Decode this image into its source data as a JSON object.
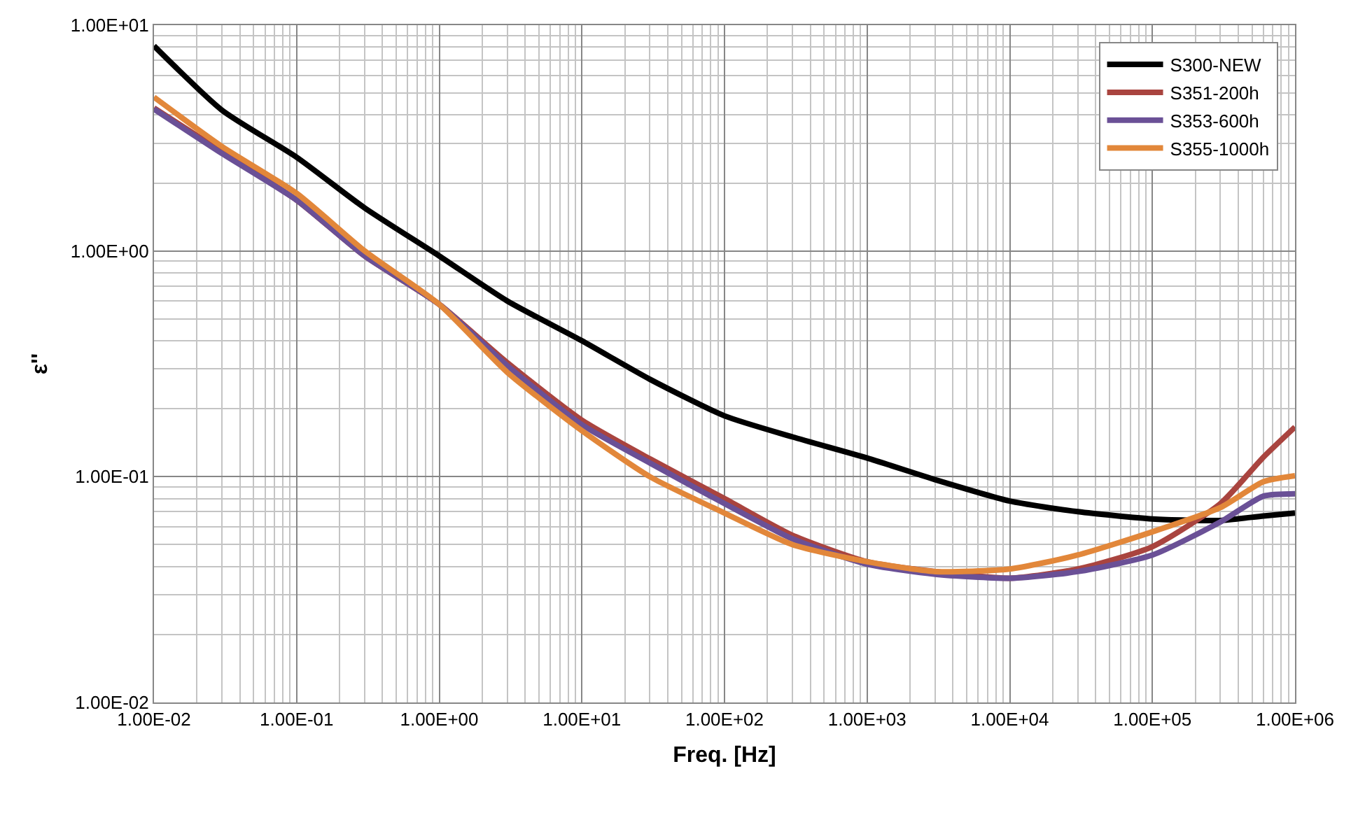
{
  "chart_data": {
    "type": "line",
    "xlabel": "Freq. [Hz]",
    "ylabel": "ε''",
    "log": "xy",
    "grid": true,
    "legend": "top right",
    "marker": "none",
    "line_style": "solid",
    "x": [
      0.01,
      0.03,
      0.1,
      0.3,
      1,
      3,
      10,
      30,
      100,
      300,
      1000,
      3000,
      10000,
      30000,
      100000,
      300000,
      600000,
      1000000
    ],
    "xlim": [
      0.01,
      1000000
    ],
    "ylim": [
      0.01,
      10
    ],
    "xticks": [
      {
        "value": 0.01,
        "label": "1.00E-02"
      },
      {
        "value": 0.1,
        "label": "1.00E-01"
      },
      {
        "value": 1,
        "label": "1.00E+00"
      },
      {
        "value": 10,
        "label": "1.00E+01"
      },
      {
        "value": 100,
        "label": "1.00E+02"
      },
      {
        "value": 1000,
        "label": "1.00E+03"
      },
      {
        "value": 10000,
        "label": "1.00E+04"
      },
      {
        "value": 100000,
        "label": "1.00E+05"
      },
      {
        "value": 1000000,
        "label": "1.00E+06"
      }
    ],
    "yticks": [
      {
        "value": 0.01,
        "label": "1.00E-02"
      },
      {
        "value": 0.1,
        "label": "1.00E-01"
      },
      {
        "value": 1,
        "label": "1.00E+00"
      },
      {
        "value": 10,
        "label": "1.00E+01"
      }
    ],
    "series": [
      {
        "name": "S300-NEW",
        "color": "#000000",
        "values": [
          8.1,
          4.2,
          2.6,
          1.55,
          0.95,
          0.6,
          0.4,
          0.27,
          0.186,
          0.15,
          0.121,
          0.097,
          0.078,
          0.07,
          0.065,
          0.064,
          0.067,
          0.069
        ]
      },
      {
        "name": "S351-200h",
        "color": "#a9443f",
        "values": [
          4.3,
          2.75,
          1.68,
          0.95,
          0.58,
          0.32,
          0.178,
          0.12,
          0.08,
          0.055,
          0.042,
          0.038,
          0.0355,
          0.039,
          0.049,
          0.076,
          0.122,
          0.166
        ]
      },
      {
        "name": "S353-600h",
        "color": "#6a5096",
        "values": [
          4.25,
          2.7,
          1.68,
          0.95,
          0.58,
          0.31,
          0.17,
          0.115,
          0.076,
          0.053,
          0.041,
          0.037,
          0.0355,
          0.038,
          0.045,
          0.063,
          0.082,
          0.084
        ]
      },
      {
        "name": "S355-1000h",
        "color": "#e2873a",
        "values": [
          4.8,
          2.9,
          1.8,
          1.0,
          0.58,
          0.29,
          0.16,
          0.1,
          0.069,
          0.05,
          0.042,
          0.038,
          0.039,
          0.045,
          0.057,
          0.073,
          0.095,
          0.101
        ]
      }
    ]
  }
}
